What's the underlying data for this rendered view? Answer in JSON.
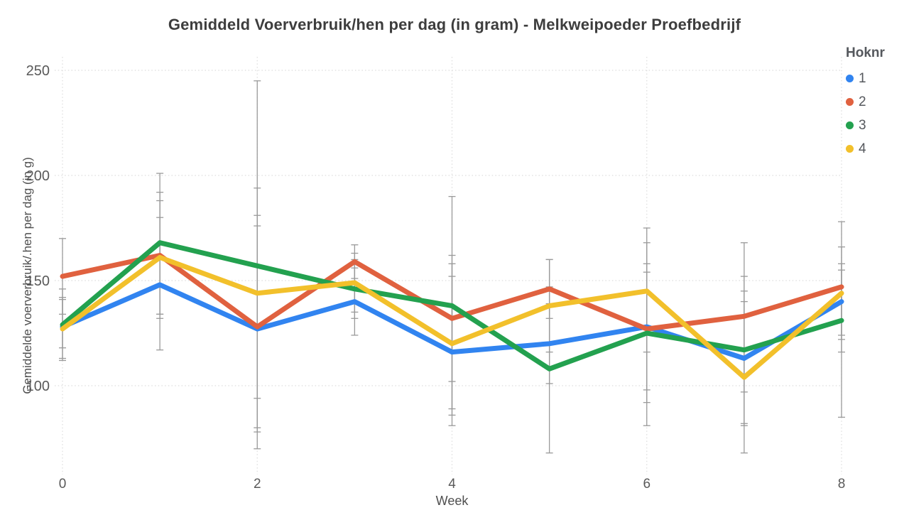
{
  "chart_data": {
    "type": "line",
    "title": "Gemiddeld Voerverbruik/hen per dag (in gram) - Melkweipoeder Proefbedrijf",
    "xlabel": "Week",
    "ylabel": "Gemiddelde voerverbruik/.hen per dag (in g)",
    "legend_title": "Hoknr",
    "legend_position": "top-right",
    "grid": "dotted",
    "error_bars": true,
    "x": [
      0,
      1,
      2,
      3,
      4,
      5,
      6,
      7,
      8
    ],
    "x_ticks": [
      0,
      2,
      4,
      6,
      8
    ],
    "y_ticks": [
      100,
      150,
      200,
      250
    ],
    "xlim": [
      0,
      8
    ],
    "ylim": [
      62,
      256
    ],
    "series": [
      {
        "name": "1",
        "color": "#3184f0",
        "values": [
          128,
          148,
          127,
          140,
          116,
          120,
          128,
          113,
          140
        ],
        "err_lo": [
          112,
          117,
          78,
          124,
          89,
          101,
          92,
          81,
          124
        ],
        "err_hi": [
          146,
          180,
          176,
          156,
          152,
          139,
          168,
          145,
          155
        ]
      },
      {
        "name": "2",
        "color": "#e0613f",
        "values": [
          152,
          162,
          128,
          159,
          132,
          146,
          127,
          133,
          147
        ],
        "err_lo": [
          134,
          132,
          80,
          151,
          102,
          132,
          98,
          97,
          116
        ],
        "err_hi": [
          170,
          192,
          181,
          167,
          162,
          160,
          158,
          168,
          178
        ]
      },
      {
        "name": "3",
        "color": "#23a14f",
        "values": [
          129,
          168,
          157,
          146,
          138,
          108,
          125,
          117,
          131
        ],
        "err_lo": [
          118,
          134,
          70,
          132,
          86,
          68,
          81,
          82,
          85
        ],
        "err_hi": [
          142,
          201,
          245,
          160,
          190,
          147,
          154,
          152,
          158
        ]
      },
      {
        "name": "4",
        "color": "#f2c02b",
        "values": [
          127,
          161,
          144,
          149,
          120,
          138,
          145,
          104,
          144
        ],
        "err_lo": [
          113,
          134,
          94,
          135,
          81,
          116,
          116,
          68,
          122
        ],
        "err_hi": [
          141,
          188,
          194,
          163,
          158,
          160,
          175,
          140,
          166
        ]
      }
    ]
  },
  "colors": {
    "grid": "#dcdcdc",
    "error_bar": "#9a9a9a",
    "tick_label": "#595959",
    "axis_title": "#4f4f4f",
    "title_text": "#3d3d3d",
    "legend_text": "#55585d",
    "background": "#ffffff"
  }
}
